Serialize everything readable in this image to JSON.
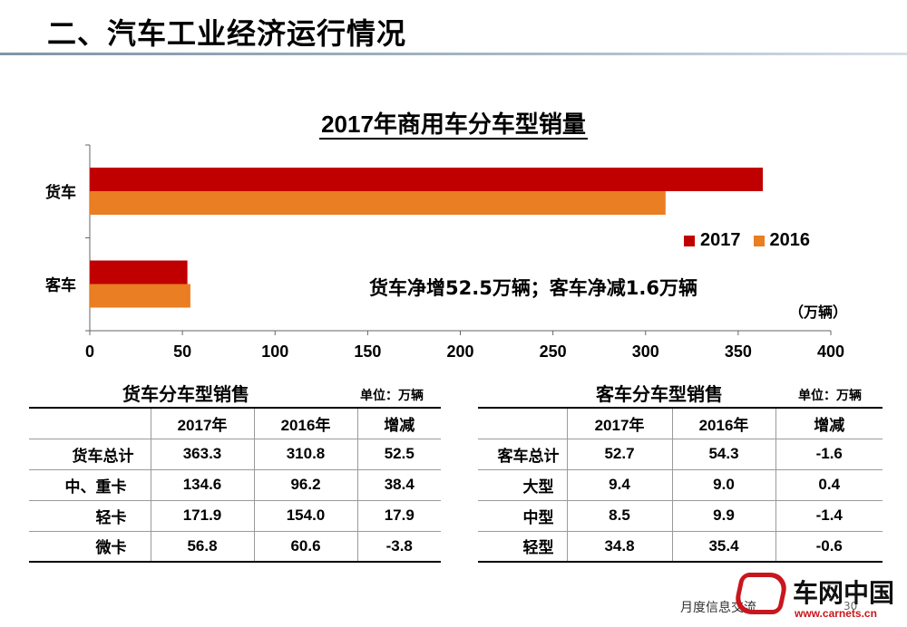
{
  "slide": {
    "title": "二、汽车工业经济运行情况",
    "footer": "月度信息交流",
    "page_number": "30",
    "logo_text": "车网中国",
    "logo_url": "www.carnets.cn"
  },
  "chart_data": {
    "type": "bar",
    "orientation": "horizontal",
    "title": "2017年商用车分车型销量",
    "categories": [
      "货车",
      "客车"
    ],
    "series": [
      {
        "name": "2017",
        "values": [
          363.3,
          52.7
        ],
        "color": "#c00000"
      },
      {
        "name": "2016",
        "values": [
          310.8,
          54.3
        ],
        "color": "#e97e22"
      }
    ],
    "xlim": [
      0,
      400
    ],
    "xticks": [
      "0",
      "50",
      "100",
      "150",
      "200",
      "250",
      "300",
      "350",
      "400"
    ],
    "unit": "（万辆）",
    "annotation": "货车净增52.5万辆；客车净减1.6万辆",
    "legend_position": "right"
  },
  "truck_table": {
    "title": "货车分车型销售",
    "unit": "单位：万辆",
    "headers": [
      "",
      "2017年",
      "2016年",
      "增减"
    ],
    "rows": [
      [
        "货车总计",
        "363.3",
        "310.8",
        "52.5"
      ],
      [
        "中、重卡",
        "134.6",
        "96.2",
        "38.4"
      ],
      [
        "轻卡",
        "171.9",
        "154.0",
        "17.9"
      ],
      [
        "微卡",
        "56.8",
        "60.6",
        "-3.8"
      ]
    ]
  },
  "bus_table": {
    "title": "客车分车型销售",
    "unit": "单位：万辆",
    "headers": [
      "",
      "2017年",
      "2016年",
      "增减"
    ],
    "rows": [
      [
        "客车总计",
        "52.7",
        "54.3",
        "-1.6"
      ],
      [
        "大型",
        "9.4",
        "9.0",
        "0.4"
      ],
      [
        "中型",
        "8.5",
        "9.9",
        "-1.4"
      ],
      [
        "轻型",
        "34.8",
        "35.4",
        "-0.6"
      ]
    ]
  }
}
